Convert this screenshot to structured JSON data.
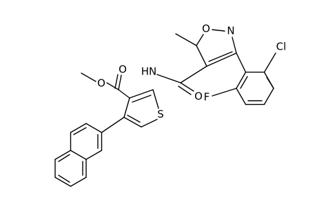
{
  "atoms": [
    {
      "label": "O"
    },
    {
      "label": "O"
    },
    {
      "label": "HN"
    },
    {
      "label": "S"
    },
    {
      "label": "O"
    },
    {
      "label": "N"
    },
    {
      "label": "Cl"
    },
    {
      "label": "O"
    },
    {
      "label": "F"
    }
  ]
}
